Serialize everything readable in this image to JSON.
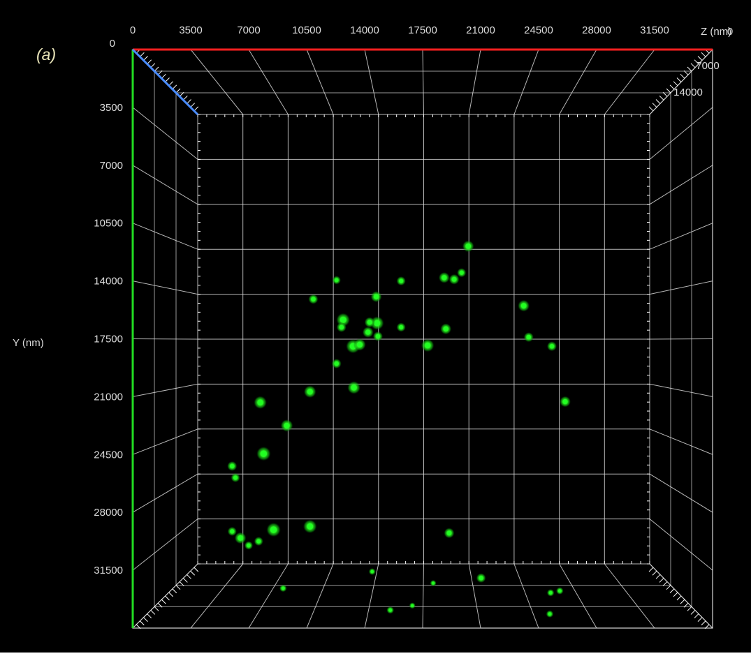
{
  "panel_label": "(a)",
  "axes": {
    "x_ticks": [
      "0",
      "3500",
      "7000",
      "10500",
      "14000",
      "17500",
      "21000",
      "24500",
      "28000",
      "31500"
    ],
    "x_unit_label": "Z (nm)",
    "y_ticks": [
      "0",
      "3500",
      "7000",
      "10500",
      "14000",
      "17500",
      "21000",
      "24500",
      "28000",
      "31500"
    ],
    "y_label": "Y (nm)",
    "z_ticks": [
      "0",
      "7000",
      "14000"
    ]
  },
  "colors": {
    "background": "#000000",
    "grid": "#d8d8d8",
    "x_axis": "#ff2020",
    "y_axis": "#22dd22",
    "z_axis": "#4a8cff",
    "tick_text": "#dcdcdc",
    "panel_label": "#e8e4b8",
    "spot": "#22ff22"
  },
  "spots": [
    {
      "x": 20250,
      "y": 11900,
      "s": 1.0
    },
    {
      "x": 14700,
      "y": 14950,
      "s": 0.9
    },
    {
      "x": 10900,
      "y": 15100,
      "s": 0.7
    },
    {
      "x": 18800,
      "y": 13800,
      "s": 0.9
    },
    {
      "x": 19400,
      "y": 13900,
      "s": 0.8
    },
    {
      "x": 19850,
      "y": 13500,
      "s": 0.6
    },
    {
      "x": 16200,
      "y": 14000,
      "s": 0.6
    },
    {
      "x": 12300,
      "y": 13950,
      "s": 0.5
    },
    {
      "x": 23600,
      "y": 15500,
      "s": 1.0
    },
    {
      "x": 12700,
      "y": 16350,
      "s": 1.3
    },
    {
      "x": 14750,
      "y": 16550,
      "s": 1.3
    },
    {
      "x": 14300,
      "y": 16500,
      "s": 0.8
    },
    {
      "x": 12600,
      "y": 16800,
      "s": 0.7
    },
    {
      "x": 14200,
      "y": 17100,
      "s": 0.9
    },
    {
      "x": 14800,
      "y": 17350,
      "s": 0.7
    },
    {
      "x": 16200,
      "y": 16800,
      "s": 0.6
    },
    {
      "x": 18900,
      "y": 16900,
      "s": 0.9
    },
    {
      "x": 17800,
      "y": 17900,
      "s": 1.2
    },
    {
      "x": 13300,
      "y": 17950,
      "s": 1.4
    },
    {
      "x": 13700,
      "y": 17850,
      "s": 1.1
    },
    {
      "x": 12300,
      "y": 19000,
      "s": 0.7
    },
    {
      "x": 13350,
      "y": 20450,
      "s": 1.2
    },
    {
      "x": 10700,
      "y": 20700,
      "s": 1.1
    },
    {
      "x": 7700,
      "y": 21350,
      "s": 1.2
    },
    {
      "x": 9300,
      "y": 22750,
      "s": 1.1
    },
    {
      "x": 7900,
      "y": 24450,
      "s": 1.4
    },
    {
      "x": 6000,
      "y": 25200,
      "s": 0.7
    },
    {
      "x": 6200,
      "y": 25900,
      "s": 0.6
    },
    {
      "x": 23900,
      "y": 17400,
      "s": 0.7
    },
    {
      "x": 25300,
      "y": 17950,
      "s": 0.7
    },
    {
      "x": 26100,
      "y": 21300,
      "s": 0.9
    },
    {
      "x": 8500,
      "y": 29050,
      "s": 1.4
    },
    {
      "x": 10700,
      "y": 28850,
      "s": 1.3
    },
    {
      "x": 6500,
      "y": 29550,
      "s": 1.0
    },
    {
      "x": 7600,
      "y": 29750,
      "s": 0.6
    },
    {
      "x": 19100,
      "y": 29250,
      "s": 0.8
    },
    {
      "x": 6000,
      "y": 29150,
      "s": 0.6
    },
    {
      "x": 7000,
      "y": 30000,
      "s": 0.5
    }
  ],
  "floor_spots": [
    {
      "u": 0.22,
      "v": 0.62,
      "s": 0.6
    },
    {
      "u": 0.39,
      "v": 0.88,
      "s": 0.5
    },
    {
      "u": 0.44,
      "v": 0.28,
      "s": 0.6
    },
    {
      "u": 0.62,
      "v": 0.78,
      "s": 1.0
    },
    {
      "u": 0.73,
      "v": 0.22,
      "s": 0.6
    },
    {
      "u": 0.75,
      "v": 0.55,
      "s": 0.6
    },
    {
      "u": 0.77,
      "v": 0.58,
      "s": 0.6
    },
    {
      "u": 0.52,
      "v": 0.7,
      "s": 0.4
    },
    {
      "u": 0.48,
      "v": 0.35,
      "s": 0.4
    }
  ]
}
